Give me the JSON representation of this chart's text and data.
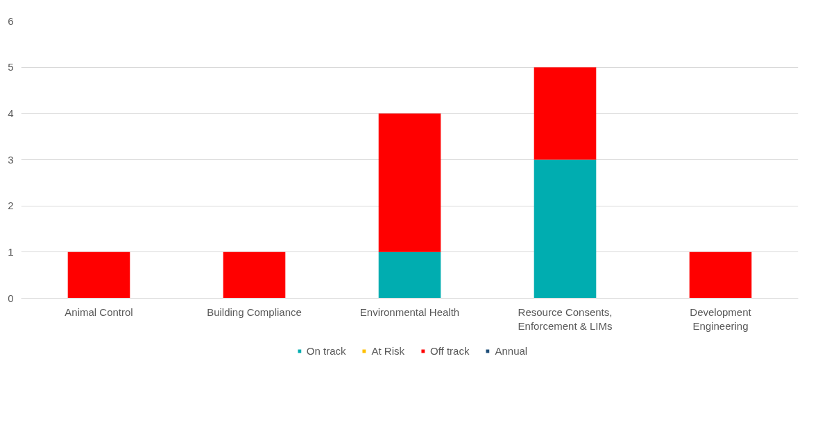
{
  "chart_data": {
    "type": "bar",
    "stacked": true,
    "categories": [
      "Animal Control",
      "Building Compliance",
      "Environmental Health",
      "Resource Consents, Enforcement & LIMs",
      "Development Engineering"
    ],
    "series": [
      {
        "name": "On track",
        "color": "#00adb0",
        "values": [
          0,
          0,
          1,
          3,
          0
        ]
      },
      {
        "name": "At Risk",
        "color": "#ffc000",
        "values": [
          0,
          0,
          0,
          0,
          0
        ]
      },
      {
        "name": "Off track",
        "color": "#ff0000",
        "values": [
          1,
          1,
          3,
          2,
          1
        ]
      },
      {
        "name": "Annual",
        "color": "#1f4e79",
        "values": [
          0,
          0,
          0,
          0,
          0
        ]
      }
    ],
    "ylim": [
      0,
      6
    ],
    "yticks": [
      0,
      1,
      2,
      3,
      4,
      5,
      6
    ],
    "grid": "y",
    "legend": "bottom"
  }
}
